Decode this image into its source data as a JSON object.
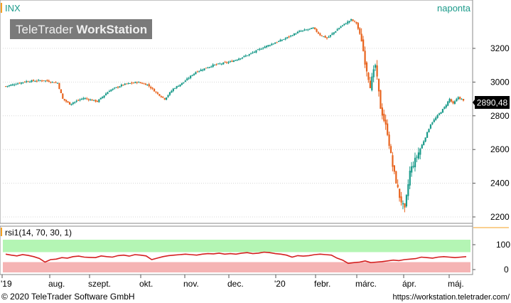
{
  "window": {
    "symbol": "INX",
    "period": "naponta",
    "watermark_light": "TeleTrader ",
    "watermark_bold": "WorkStation",
    "last_price": "2890,48"
  },
  "colors": {
    "up": "#1a9a8a",
    "down": "#e8641e",
    "rsi_line": "#d42020",
    "rsi_upper_band": "#b4f5b4",
    "rsi_lower_band": "#f5b4b4",
    "accent": "#f5a020",
    "grid": "#d8d8d8"
  },
  "chart_data": [
    {
      "type": "candlestick",
      "series_name": "INX",
      "y_ticks": [
        2200,
        2400,
        2600,
        2800,
        3000,
        3200
      ],
      "ylim": [
        2180,
        3400
      ],
      "x_tick_labels": [
        "'19",
        "aug.",
        "szept.",
        "okt.",
        "nov.",
        "dec.",
        "'20",
        "febr.",
        "márc.",
        "ápr.",
        "máj."
      ],
      "anchors": [
        [
          0,
          2975
        ],
        [
          12,
          3005
        ],
        [
          22,
          3010
        ],
        [
          30,
          2995
        ],
        [
          33,
          2900
        ],
        [
          37,
          2870
        ],
        [
          45,
          2905
        ],
        [
          53,
          2885
        ],
        [
          60,
          2950
        ],
        [
          68,
          2985
        ],
        [
          76,
          3000
        ],
        [
          82,
          2985
        ],
        [
          88,
          2930
        ],
        [
          92,
          2900
        ],
        [
          97,
          2960
        ],
        [
          103,
          3000
        ],
        [
          110,
          3060
        ],
        [
          120,
          3100
        ],
        [
          130,
          3120
        ],
        [
          140,
          3160
        ],
        [
          150,
          3210
        ],
        [
          160,
          3250
        ],
        [
          170,
          3300
        ],
        [
          178,
          3320
        ],
        [
          182,
          3280
        ],
        [
          186,
          3260
        ],
        [
          194,
          3330
        ],
        [
          200,
          3370
        ],
        [
          203,
          3350
        ],
        [
          206,
          3250
        ],
        [
          208,
          3120
        ],
        [
          211,
          2980
        ],
        [
          214,
          3100
        ],
        [
          217,
          2850
        ],
        [
          221,
          2700
        ],
        [
          224,
          2500
        ],
        [
          228,
          2320
        ],
        [
          231,
          2240
        ],
        [
          234,
          2470
        ],
        [
          238,
          2560
        ],
        [
          242,
          2650
        ],
        [
          246,
          2750
        ],
        [
          250,
          2800
        ],
        [
          254,
          2850
        ],
        [
          257,
          2900
        ],
        [
          259,
          2870
        ],
        [
          262,
          2910
        ],
        [
          265,
          2890
        ]
      ],
      "last": 2890.48
    },
    {
      "type": "line",
      "series_name": "rsi1",
      "title": "rsi1(14, 70, 30, 1)",
      "y_ticks": [
        0,
        100
      ],
      "ylim": [
        -10,
        110
      ],
      "bands": [
        {
          "from": 70,
          "to": 100
        },
        {
          "from": 0,
          "to": 30
        }
      ],
      "values": [
        62,
        58,
        55,
        60,
        57,
        52,
        45,
        30,
        40,
        42,
        48,
        46,
        52,
        54,
        50,
        49,
        48,
        55,
        52,
        50,
        56,
        58,
        54,
        60,
        58,
        55,
        40,
        46,
        52,
        56,
        58,
        60,
        62,
        60,
        58,
        62,
        64,
        63,
        66,
        62,
        64,
        62,
        66,
        68,
        64,
        66,
        70,
        68,
        64,
        62,
        58,
        50,
        56,
        54,
        56,
        60,
        62,
        60,
        58,
        46,
        38,
        25,
        28,
        30,
        35,
        28,
        30,
        32,
        35,
        38,
        36,
        40,
        42,
        44,
        50,
        48,
        46,
        50,
        52,
        50,
        48,
        50,
        52
      ]
    }
  ],
  "footer": {
    "copyright": "© 2020 TeleTrader Software GmbH",
    "url": "https://workstation.teletrader.com/"
  }
}
